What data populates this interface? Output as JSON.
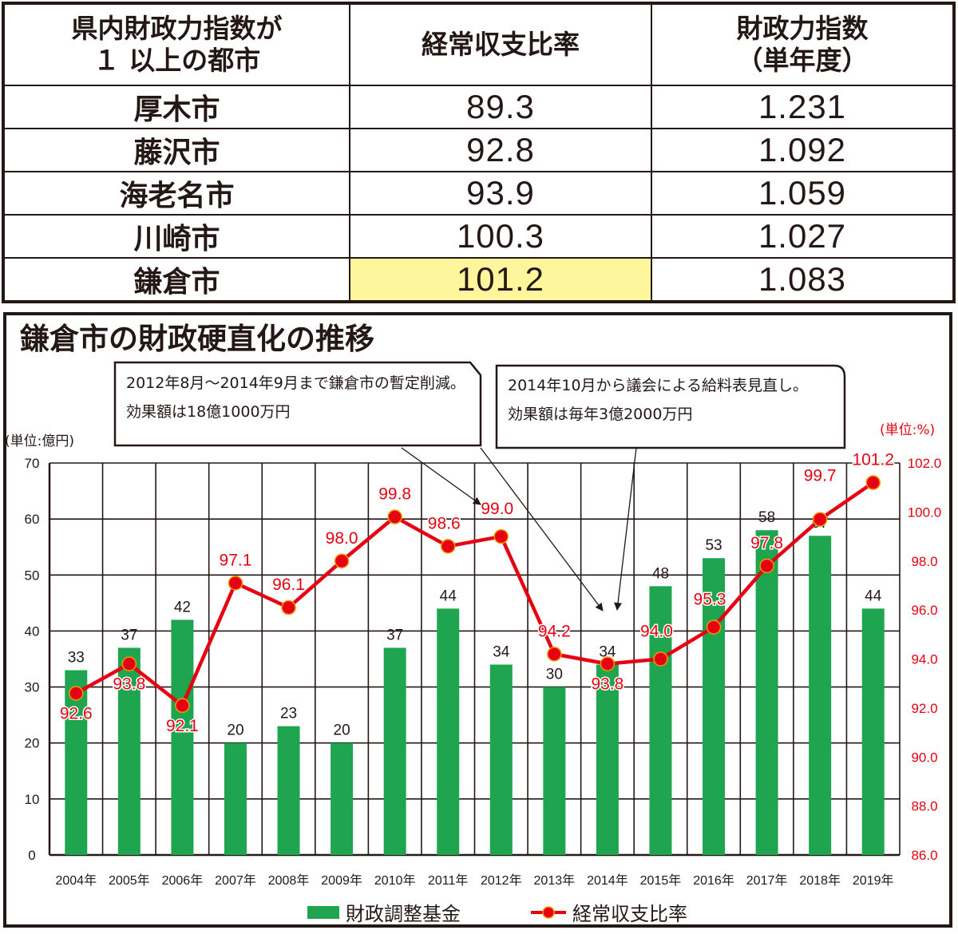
{
  "table": {
    "headers": {
      "city_line1": "県内財政力指数が",
      "city_line2": "１ 以上の都市",
      "ratio": "経常収支比率",
      "index_line1": "財政力指数",
      "index_line2": "（単年度）"
    },
    "rows": [
      {
        "city": "厚木市",
        "ratio": "89.3",
        "index": "1.231"
      },
      {
        "city": "藤沢市",
        "ratio": "92.8",
        "index": "1.092"
      },
      {
        "city": "海老名市",
        "ratio": "93.9",
        "index": "1.059"
      },
      {
        "city": "川崎市",
        "ratio": "100.3",
        "index": "1.027"
      },
      {
        "city": "鎌倉市",
        "ratio": "101.2",
        "index": "1.083",
        "highlight": true
      }
    ],
    "highlight_color": "#fff59d"
  },
  "chart": {
    "title": "鎌倉市の財政硬直化の推移",
    "unit_left": "(単位:億円)",
    "unit_right": "(単位:%)",
    "callout1": {
      "line1": "2012年8月～2014年9月まで鎌倉市の暫定削減。",
      "line2": "効果額は18億1000万円"
    },
    "callout2": {
      "line1": "2014年10月から議会による給料表見直し。",
      "line2": "効果額は毎年3億2000万円"
    },
    "legend": {
      "bar": "財政調整基金",
      "line": "経常収支比率"
    },
    "colors": {
      "bar": "#1fa550",
      "line": "#e60012",
      "marker_edge": "#f39800",
      "grid": "#231815"
    }
  },
  "chart_data": {
    "type": "bar",
    "title": "鎌倉市の財政硬直化の推移",
    "categories": [
      "2004年",
      "2005年",
      "2006年",
      "2007年",
      "2008年",
      "2009年",
      "2010年",
      "2011年",
      "2012年",
      "2013年",
      "2014年",
      "2015年",
      "2016年",
      "2017年",
      "2018年",
      "2019年"
    ],
    "series": [
      {
        "name": "財政調整基金",
        "type": "bar",
        "axis": "left",
        "unit": "億円",
        "values": [
          33,
          37,
          42,
          20,
          23,
          20,
          37,
          44,
          34,
          30,
          34,
          48,
          53,
          58,
          57,
          44
        ]
      },
      {
        "name": "経常収支比率",
        "type": "line",
        "axis": "right",
        "unit": "%",
        "values": [
          92.6,
          93.8,
          92.1,
          97.1,
          96.1,
          98.0,
          99.8,
          98.6,
          99.0,
          94.2,
          93.8,
          94.0,
          95.3,
          97.8,
          99.7,
          101.2
        ]
      }
    ],
    "ylabel": "(単位:億円)",
    "y2label": "(単位:%)",
    "ylim": [
      0,
      70
    ],
    "y2lim": [
      86.0,
      102.0
    ],
    "yticks": [
      "0",
      "10",
      "20",
      "30",
      "40",
      "50",
      "60",
      "70"
    ],
    "y2ticks": [
      "86.0",
      "88.0",
      "90.0",
      "92.0",
      "94.0",
      "96.0",
      "98.0",
      "100.0",
      "102.0"
    ],
    "grid": true,
    "legend_position": "bottom",
    "annotations": [
      "2012年8月～2014年9月まで鎌倉市の暫定削減。効果額は18億1000万円",
      "2014年10月から議会による給料表見直し。効果額は毎年3億2000万円"
    ]
  }
}
